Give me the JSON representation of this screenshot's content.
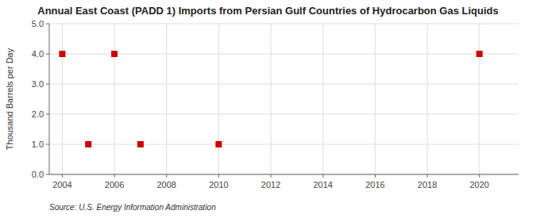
{
  "chart_data": {
    "type": "scatter",
    "title": "Annual East Coast (PADD 1) Imports from Persian Gulf Countries of Hydrocarbon Gas Liquids",
    "ylabel": "Thousand Barrels per Day",
    "source": "Source: U.S. Energy Information Administration",
    "x": [
      2004,
      2005,
      2006,
      2007,
      2010,
      2020
    ],
    "values": [
      4.0,
      1.0,
      4.0,
      1.0,
      1.0,
      4.0
    ],
    "xlim": [
      2003.5,
      2021.5
    ],
    "ylim": [
      0.0,
      5.0
    ],
    "xticks": [
      2004,
      2006,
      2008,
      2010,
      2012,
      2014,
      2016,
      2018,
      2020
    ],
    "yticks": [
      {
        "value": 0.0,
        "label": "0.0"
      },
      {
        "value": 1.0,
        "label": "1.0"
      },
      {
        "value": 2.0,
        "label": "2.0"
      },
      {
        "value": 3.0,
        "label": "3.0"
      },
      {
        "value": 4.0,
        "label": "4.0"
      },
      {
        "value": 5.0,
        "label": "5.0"
      }
    ],
    "color": "#cc0000",
    "marker": "square",
    "grid": true
  }
}
